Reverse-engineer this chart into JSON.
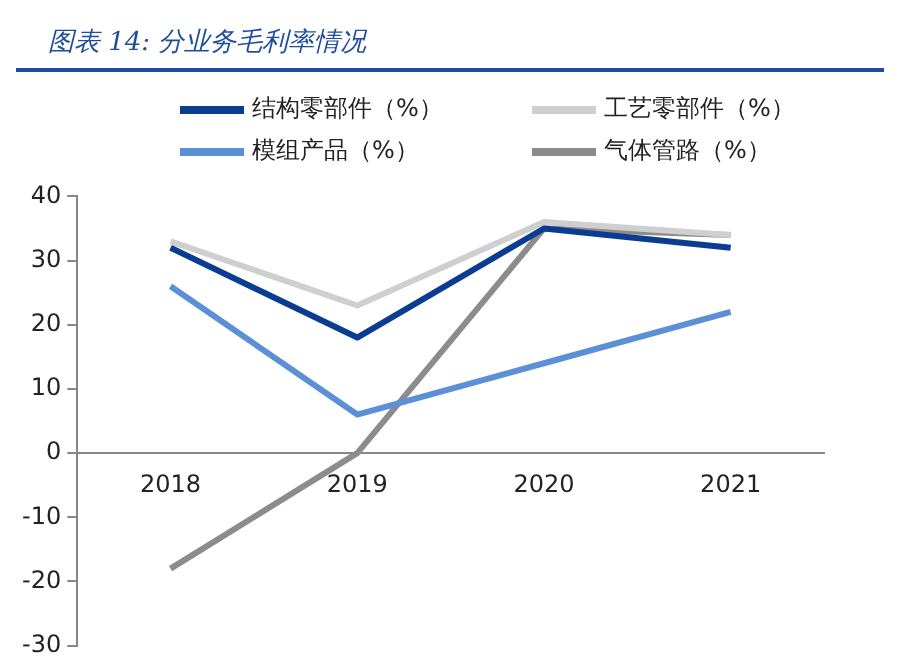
{
  "chart_data": {
    "type": "line",
    "title": "图表 14:  分业务毛利率情况",
    "categories": [
      "2018",
      "2019",
      "2020",
      "2021"
    ],
    "series": [
      {
        "name": "结构零部件（%）",
        "color": "#0a3d91",
        "values": [
          32,
          18,
          35,
          32
        ]
      },
      {
        "name": "工艺零部件（%）",
        "color": "#cfcfcf",
        "values": [
          33,
          23,
          36,
          34
        ]
      },
      {
        "name": "模组产品（%）",
        "color": "#5b8fd6",
        "values": [
          26,
          6,
          14,
          22
        ]
      },
      {
        "name": "气体管路（%）",
        "color": "#8c8c8c",
        "values": [
          -18,
          0,
          35,
          34
        ]
      }
    ],
    "ylim": [
      -30,
      40
    ],
    "yticks": [
      -30,
      -20,
      -10,
      0,
      10,
      20,
      30,
      40
    ],
    "grid": false,
    "legend": "top",
    "marker": "none",
    "line_style": "solid"
  }
}
